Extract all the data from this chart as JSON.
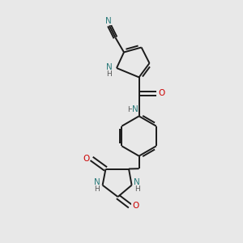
{
  "bg_color": "#e8e8e8",
  "bond_color": "#1a1a1a",
  "N_color": "#2b7a7a",
  "O_color": "#cc0000",
  "H_color": "#555555",
  "figsize": [
    3.0,
    3.0
  ],
  "dpi": 100,
  "xlim": [
    0,
    10
  ],
  "ylim": [
    0,
    10
  ]
}
